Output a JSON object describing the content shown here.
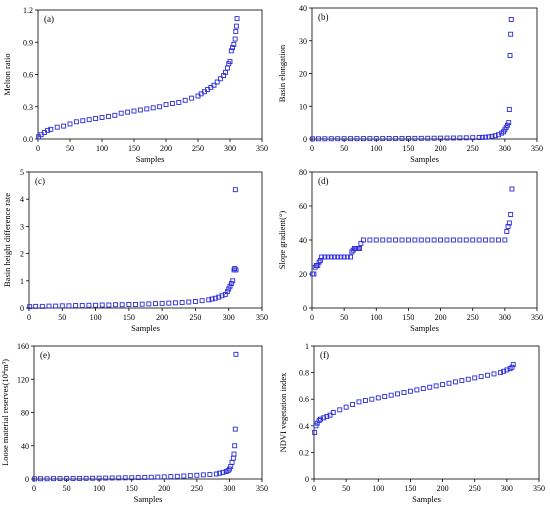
{
  "chart_data": [
    {
      "type": "scatter",
      "panel_label": "(a)",
      "xlabel": "Samples",
      "ylabel": "Melton ratio",
      "xlim": [
        0,
        350
      ],
      "ylim": [
        0,
        1.2
      ],
      "xticks": [
        "0",
        "50",
        "100",
        "150",
        "200",
        "250",
        "300",
        "350"
      ],
      "yticks": [
        "0.0",
        "0.3",
        "0.6",
        "0.9",
        "1.2"
      ],
      "series": [
        {
          "marker": "open-square",
          "color": "#2a2ad9",
          "x": [
            1,
            5,
            10,
            15,
            20,
            30,
            40,
            50,
            60,
            70,
            80,
            90,
            100,
            110,
            120,
            130,
            140,
            150,
            160,
            170,
            180,
            190,
            200,
            210,
            220,
            230,
            240,
            250,
            255,
            260,
            265,
            270,
            275,
            280,
            285,
            290,
            293,
            296,
            298,
            300,
            302,
            304,
            306,
            308,
            309,
            310,
            311
          ],
          "y": [
            0.02,
            0.04,
            0.06,
            0.08,
            0.09,
            0.11,
            0.12,
            0.14,
            0.16,
            0.17,
            0.18,
            0.19,
            0.2,
            0.21,
            0.22,
            0.24,
            0.25,
            0.26,
            0.27,
            0.28,
            0.29,
            0.3,
            0.32,
            0.33,
            0.34,
            0.36,
            0.38,
            0.4,
            0.42,
            0.44,
            0.46,
            0.48,
            0.5,
            0.53,
            0.56,
            0.59,
            0.62,
            0.66,
            0.7,
            0.72,
            0.82,
            0.85,
            0.88,
            0.93,
            1.0,
            1.05,
            1.12
          ]
        }
      ]
    },
    {
      "type": "scatter",
      "panel_label": "(b)",
      "xlabel": "Samples",
      "ylabel": "Basin elongation",
      "xlim": [
        0,
        350
      ],
      "ylim": [
        0,
        40
      ],
      "xticks": [
        "0",
        "50",
        "100",
        "150",
        "200",
        "250",
        "300",
        "350"
      ],
      "yticks": [
        "0",
        "10",
        "20",
        "30",
        "40"
      ],
      "series": [
        {
          "marker": "open-square",
          "color": "#2a2ad9",
          "x": [
            1,
            10,
            20,
            30,
            40,
            50,
            60,
            70,
            80,
            90,
            100,
            110,
            120,
            130,
            140,
            150,
            160,
            170,
            180,
            190,
            200,
            210,
            220,
            230,
            240,
            250,
            260,
            265,
            270,
            275,
            280,
            285,
            290,
            295,
            298,
            300,
            302,
            304,
            306,
            307,
            308,
            309,
            310
          ],
          "y": [
            0.05,
            0.06,
            0.07,
            0.08,
            0.09,
            0.1,
            0.1,
            0.11,
            0.12,
            0.12,
            0.13,
            0.14,
            0.15,
            0.16,
            0.17,
            0.18,
            0.19,
            0.2,
            0.22,
            0.24,
            0.26,
            0.28,
            0.3,
            0.33,
            0.36,
            0.4,
            0.45,
            0.5,
            0.55,
            0.65,
            0.8,
            1.0,
            1.3,
            1.8,
            2.2,
            2.8,
            3.5,
            4.2,
            5.0,
            9.0,
            25.5,
            32.0,
            36.5
          ]
        }
      ]
    },
    {
      "type": "scatter",
      "panel_label": "(c)",
      "xlabel": "Samples",
      "ylabel": "Basin height difference rate",
      "xlim": [
        0,
        350
      ],
      "ylim": [
        0,
        5
      ],
      "xticks": [
        "0",
        "50",
        "100",
        "150",
        "200",
        "250",
        "300",
        "350"
      ],
      "yticks": [
        "0",
        "1",
        "2",
        "3",
        "4",
        "5"
      ],
      "series": [
        {
          "marker": "open-square",
          "color": "#2a2ad9",
          "x": [
            1,
            10,
            20,
            30,
            40,
            50,
            60,
            70,
            80,
            90,
            100,
            110,
            120,
            130,
            140,
            150,
            160,
            170,
            180,
            190,
            200,
            210,
            220,
            230,
            240,
            250,
            260,
            270,
            275,
            280,
            285,
            290,
            295,
            298,
            300,
            302,
            304,
            306,
            308,
            309,
            310,
            311
          ],
          "y": [
            0.05,
            0.06,
            0.06,
            0.07,
            0.07,
            0.08,
            0.08,
            0.09,
            0.09,
            0.1,
            0.1,
            0.11,
            0.11,
            0.12,
            0.12,
            0.13,
            0.13,
            0.14,
            0.15,
            0.16,
            0.17,
            0.18,
            0.19,
            0.2,
            0.22,
            0.24,
            0.27,
            0.3,
            0.33,
            0.36,
            0.4,
            0.45,
            0.5,
            0.6,
            0.7,
            0.8,
            0.9,
            1.0,
            1.4,
            1.45,
            4.35,
            1.4
          ]
        }
      ]
    },
    {
      "type": "scatter",
      "panel_label": "(d)",
      "xlabel": "Samples",
      "ylabel": "Slope gradient(°)",
      "xlim": [
        0,
        350
      ],
      "ylim": [
        0,
        80
      ],
      "xticks": [
        "0",
        "50",
        "100",
        "150",
        "200",
        "250",
        "300",
        "350"
      ],
      "yticks": [
        "0",
        "20",
        "40",
        "60",
        "80"
      ],
      "series": [
        {
          "marker": "open-square",
          "color": "#2a2ad9",
          "x": [
            1,
            3,
            5,
            7,
            9,
            11,
            13,
            15,
            20,
            25,
            30,
            35,
            40,
            45,
            50,
            55,
            60,
            62,
            64,
            66,
            68,
            70,
            72,
            74,
            76,
            80,
            90,
            100,
            110,
            120,
            130,
            140,
            150,
            160,
            170,
            180,
            190,
            200,
            210,
            220,
            230,
            240,
            250,
            260,
            270,
            280,
            290,
            300,
            303,
            305,
            307,
            309,
            311
          ],
          "y": [
            20,
            20,
            24,
            25,
            25,
            27,
            28,
            30,
            30,
            30,
            30,
            30,
            30,
            30,
            30,
            30,
            30,
            33,
            34,
            35,
            35,
            35,
            35,
            35,
            38,
            40,
            40,
            40,
            40,
            40,
            40,
            40,
            40,
            40,
            40,
            40,
            40,
            40,
            40,
            40,
            40,
            40,
            40,
            40,
            40,
            40,
            40,
            40,
            45,
            48,
            50,
            55,
            70
          ]
        }
      ]
    },
    {
      "type": "scatter",
      "panel_label": "(e)",
      "xlabel": "Samples",
      "ylabel": "Loose material reserves(10⁴m³)",
      "xlim": [
        0,
        350
      ],
      "ylim": [
        0,
        160
      ],
      "xticks": [
        "0",
        "50",
        "100",
        "150",
        "200",
        "250",
        "300",
        "350"
      ],
      "yticks": [
        "0",
        "40",
        "80",
        "120",
        "160"
      ],
      "series": [
        {
          "marker": "open-square",
          "color": "#2a2ad9",
          "x": [
            1,
            10,
            20,
            30,
            40,
            50,
            60,
            70,
            80,
            90,
            100,
            110,
            120,
            130,
            140,
            150,
            160,
            170,
            180,
            190,
            200,
            210,
            220,
            230,
            240,
            250,
            260,
            270,
            280,
            285,
            290,
            295,
            298,
            300,
            302,
            304,
            306,
            307,
            308,
            309,
            310
          ],
          "y": [
            0.2,
            0.3,
            0.3,
            0.4,
            0.5,
            0.5,
            0.6,
            0.7,
            0.8,
            0.9,
            1.0,
            1.1,
            1.2,
            1.3,
            1.4,
            1.5,
            1.7,
            1.9,
            2.1,
            2.3,
            2.6,
            2.9,
            3.2,
            3.6,
            4.0,
            4.5,
            5.0,
            5.5,
            6.0,
            7.0,
            8.0,
            9.0,
            10.0,
            12.0,
            15.0,
            20.0,
            25.0,
            30.0,
            40.0,
            60.0,
            150.0
          ]
        }
      ]
    },
    {
      "type": "scatter",
      "panel_label": "(f)",
      "xlabel": "Samples",
      "ylabel": "NDVI vegetation index",
      "xlim": [
        0,
        350
      ],
      "ylim": [
        0,
        1
      ],
      "xticks": [
        "0",
        "50",
        "100",
        "150",
        "200",
        "250",
        "300",
        "350"
      ],
      "yticks": [
        "0",
        "0.2",
        "0.4",
        "0.6",
        "0.8",
        "1"
      ],
      "series": [
        {
          "marker": "open-square",
          "color": "#2a2ad9",
          "x": [
            1,
            3,
            5,
            8,
            10,
            15,
            20,
            25,
            30,
            40,
            50,
            60,
            70,
            80,
            90,
            100,
            110,
            120,
            130,
            140,
            150,
            160,
            170,
            180,
            190,
            200,
            210,
            220,
            230,
            240,
            250,
            260,
            270,
            280,
            290,
            295,
            300,
            305,
            308,
            310
          ],
          "y": [
            0.35,
            0.4,
            0.42,
            0.44,
            0.45,
            0.46,
            0.47,
            0.48,
            0.5,
            0.52,
            0.54,
            0.56,
            0.58,
            0.59,
            0.6,
            0.61,
            0.62,
            0.63,
            0.64,
            0.65,
            0.66,
            0.67,
            0.68,
            0.69,
            0.7,
            0.71,
            0.72,
            0.73,
            0.74,
            0.75,
            0.76,
            0.77,
            0.78,
            0.79,
            0.8,
            0.81,
            0.82,
            0.83,
            0.84,
            0.86
          ]
        }
      ]
    }
  ]
}
